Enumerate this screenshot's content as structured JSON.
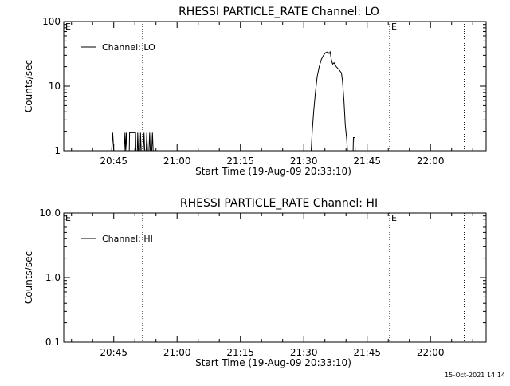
{
  "chart_data": [
    {
      "type": "line",
      "title": "RHESSI PARTICLE_RATE Channel: LO",
      "xlabel": "Start Time (19-Aug-09 20:33:10)",
      "ylabel": "Counts/sec",
      "yscale": "log",
      "ylim": [
        1,
        100
      ],
      "yticks": [
        "1",
        "10",
        "100"
      ],
      "xlim": [
        "20:33:10",
        "22:13:10"
      ],
      "xticks": [
        "20:45",
        "21:00",
        "21:15",
        "21:30",
        "21:45",
        "22:00"
      ],
      "legend": {
        "position": "top-left",
        "entries": [
          "Channel: LO"
        ]
      },
      "flags": [
        {
          "time": "20:33:10",
          "label": "E"
        },
        {
          "time": "21:50:20",
          "label": "E"
        }
      ],
      "dotted_lines": [
        "20:51:50",
        "21:50:20",
        "22:08:00"
      ],
      "series": [
        {
          "name": "Channel: LO",
          "points": [
            [
              "20:44:30",
              1
            ],
            [
              "20:44:45",
              1.9
            ],
            [
              "20:45:00",
              1
            ],
            [
              "20:47:30",
              1
            ],
            [
              "20:47:40",
              1.9
            ],
            [
              "20:47:50",
              1
            ],
            [
              "20:48:00",
              1.9
            ],
            [
              "20:48:10",
              1
            ],
            [
              "20:48:40",
              1
            ],
            [
              "20:48:45",
              1.9
            ],
            [
              "20:50:10",
              1.9
            ],
            [
              "20:50:15",
              1
            ],
            [
              "20:50:35",
              1
            ],
            [
              "20:50:40",
              1.9
            ],
            [
              "20:50:50",
              1
            ],
            [
              "20:51:15",
              1
            ],
            [
              "20:51:20",
              1.9
            ],
            [
              "20:51:30",
              1
            ],
            [
              "20:52:00",
              1
            ],
            [
              "20:52:10",
              1.9
            ],
            [
              "20:52:20",
              1
            ],
            [
              "20:52:40",
              1
            ],
            [
              "20:52:50",
              1.9
            ],
            [
              "20:53:00",
              1
            ],
            [
              "20:53:20",
              1
            ],
            [
              "20:53:30",
              1.9
            ],
            [
              "20:53:40",
              1
            ],
            [
              "20:54:00",
              1
            ],
            [
              "20:54:10",
              1.9
            ],
            [
              "20:54:20",
              1
            ],
            [
              "21:31:45",
              1
            ],
            [
              "21:32:00",
              2
            ],
            [
              "21:32:20",
              4
            ],
            [
              "21:32:45",
              8
            ],
            [
              "21:33:10",
              14
            ],
            [
              "21:33:40",
              20
            ],
            [
              "21:34:10",
              26
            ],
            [
              "21:34:40",
              30
            ],
            [
              "21:35:10",
              33
            ],
            [
              "21:35:40",
              34
            ],
            [
              "21:36:00",
              32
            ],
            [
              "21:36:15",
              34
            ],
            [
              "21:36:30",
              26
            ],
            [
              "21:36:50",
              22
            ],
            [
              "21:37:10",
              23
            ],
            [
              "21:37:40",
              20
            ],
            [
              "21:38:20",
              18
            ],
            [
              "21:38:55",
              16
            ],
            [
              "21:39:10",
              12
            ],
            [
              "21:39:30",
              6
            ],
            [
              "21:39:50",
              2.5
            ],
            [
              "21:40:10",
              1.5
            ],
            [
              "21:40:20",
              1
            ],
            [
              "21:41:40",
              1
            ],
            [
              "21:41:45",
              1.6
            ],
            [
              "21:42:05",
              1.6
            ],
            [
              "21:42:10",
              1
            ]
          ]
        }
      ]
    },
    {
      "type": "line",
      "title": "RHESSI PARTICLE_RATE Channel: HI",
      "xlabel": "Start Time (19-Aug-09 20:33:10)",
      "ylabel": "Counts/sec",
      "yscale": "log",
      "ylim": [
        0.1,
        10
      ],
      "yticks": [
        "0.1",
        "1.0",
        "10.0"
      ],
      "xlim": [
        "20:33:10",
        "22:13:10"
      ],
      "xticks": [
        "20:45",
        "21:00",
        "21:15",
        "21:30",
        "21:45",
        "22:00"
      ],
      "legend": {
        "position": "top-left",
        "entries": [
          "Channel: HI"
        ]
      },
      "flags": [
        {
          "time": "20:33:10",
          "label": "E"
        },
        {
          "time": "21:50:20",
          "label": "E"
        }
      ],
      "dotted_lines": [
        "20:51:50",
        "21:50:20",
        "22:08:00"
      ],
      "series": [
        {
          "name": "Channel: HI",
          "points": []
        }
      ]
    }
  ],
  "footer": {
    "timestamp": "15-Oct-2021 14:14"
  }
}
